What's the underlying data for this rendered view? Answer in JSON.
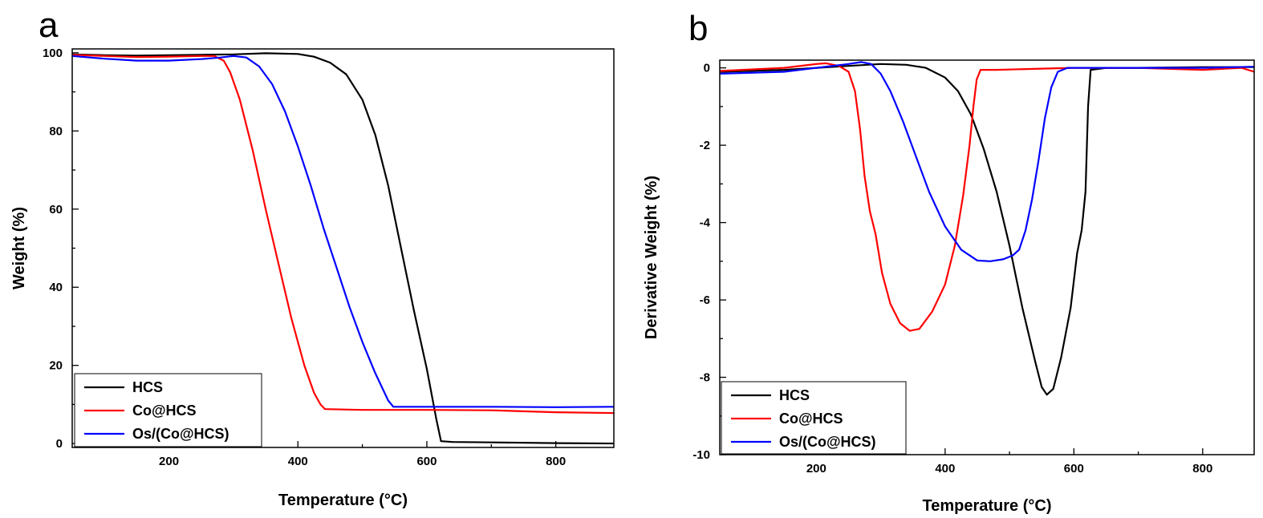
{
  "chart_data": [
    {
      "panel": "a",
      "type": "line",
      "title": "",
      "xlabel": "Temperature (°C)",
      "ylabel": "Weight (%)",
      "xlim": [
        50,
        890
      ],
      "ylim": [
        -1,
        101
      ],
      "xticks": [
        200,
        400,
        600,
        800
      ],
      "yticks": [
        0,
        20,
        40,
        60,
        80,
        100
      ],
      "grid": false,
      "legend_position": "bottom-left",
      "series": [
        {
          "name": "HCS",
          "color": "#000000",
          "points": [
            [
              50,
              99.6
            ],
            [
              100,
              99.4
            ],
            [
              150,
              99.3
            ],
            [
              200,
              99.4
            ],
            [
              250,
              99.5
            ],
            [
              300,
              99.6
            ],
            [
              350,
              99.9
            ],
            [
              400,
              99.7
            ],
            [
              425,
              99
            ],
            [
              450,
              97.5
            ],
            [
              475,
              94.5
            ],
            [
              500,
              88
            ],
            [
              520,
              79
            ],
            [
              540,
              66
            ],
            [
              560,
              50
            ],
            [
              580,
              34
            ],
            [
              600,
              19
            ],
            [
              615,
              6
            ],
            [
              622,
              0.6
            ],
            [
              640,
              0.4
            ],
            [
              700,
              0.3
            ],
            [
              800,
              0.1
            ],
            [
              890,
              0.0
            ]
          ]
        },
        {
          "name": "Co@HCS",
          "color": "#ff0000",
          "points": [
            [
              50,
              99.5
            ],
            [
              100,
              99.2
            ],
            [
              150,
              98.9
            ],
            [
              200,
              99
            ],
            [
              250,
              99.2
            ],
            [
              270,
              99.2
            ],
            [
              285,
              98
            ],
            [
              295,
              95
            ],
            [
              310,
              88
            ],
            [
              330,
              75
            ],
            [
              350,
              60
            ],
            [
              370,
              46
            ],
            [
              390,
              32
            ],
            [
              410,
              20
            ],
            [
              425,
              13
            ],
            [
              435,
              10
            ],
            [
              442,
              8.8
            ],
            [
              500,
              8.6
            ],
            [
              600,
              8.6
            ],
            [
              700,
              8.5
            ],
            [
              800,
              8.0
            ],
            [
              890,
              7.8
            ]
          ]
        },
        {
          "name": "Os/(Co@HCS)",
          "color": "#0000ff",
          "points": [
            [
              50,
              99.2
            ],
            [
              100,
              98.5
            ],
            [
              150,
              98
            ],
            [
              200,
              98
            ],
            [
              250,
              98.4
            ],
            [
              280,
              98.8
            ],
            [
              300,
              99.2
            ],
            [
              320,
              98.8
            ],
            [
              340,
              96.5
            ],
            [
              360,
              92
            ],
            [
              380,
              85
            ],
            [
              400,
              76
            ],
            [
              420,
              66
            ],
            [
              440,
              55
            ],
            [
              460,
              45
            ],
            [
              480,
              35
            ],
            [
              500,
              26
            ],
            [
              520,
              18
            ],
            [
              540,
              11
            ],
            [
              548,
              9.4
            ],
            [
              600,
              9.4
            ],
            [
              700,
              9.4
            ],
            [
              800,
              9.3
            ],
            [
              890,
              9.4
            ]
          ]
        }
      ]
    },
    {
      "panel": "b",
      "type": "line",
      "title": "",
      "xlabel": "Temperature (°C)",
      "ylabel": "Derivative Weight (%)",
      "xlim": [
        50,
        880
      ],
      "ylim": [
        -10,
        0.2
      ],
      "xticks": [
        200,
        400,
        600,
        800
      ],
      "yticks": [
        0,
        -2,
        -4,
        -6,
        -8,
        -10
      ],
      "grid": false,
      "legend_position": "bottom-left",
      "series": [
        {
          "name": "HCS",
          "color": "#000000",
          "points": [
            [
              50,
              -0.1
            ],
            [
              150,
              -0.05
            ],
            [
              250,
              0.05
            ],
            [
              300,
              0.1
            ],
            [
              340,
              0.08
            ],
            [
              370,
              0
            ],
            [
              400,
              -0.25
            ],
            [
              420,
              -0.6
            ],
            [
              440,
              -1.2
            ],
            [
              460,
              -2.1
            ],
            [
              480,
              -3.2
            ],
            [
              500,
              -4.6
            ],
            [
              520,
              -6.2
            ],
            [
              540,
              -7.6
            ],
            [
              550,
              -8.25
            ],
            [
              558,
              -8.45
            ],
            [
              568,
              -8.3
            ],
            [
              580,
              -7.5
            ],
            [
              595,
              -6.2
            ],
            [
              605,
              -4.8
            ],
            [
              612,
              -4.2
            ],
            [
              618,
              -3.2
            ],
            [
              622,
              -1.0
            ],
            [
              626,
              -0.05
            ],
            [
              650,
              0
            ],
            [
              700,
              0
            ],
            [
              800,
              0.02
            ],
            [
              880,
              0.02
            ]
          ]
        },
        {
          "name": "Co@HCS",
          "color": "#ff0000",
          "points": [
            [
              50,
              -0.08
            ],
            [
              150,
              0
            ],
            [
              200,
              0.1
            ],
            [
              215,
              0.12
            ],
            [
              235,
              0.05
            ],
            [
              250,
              -0.1
            ],
            [
              260,
              -0.6
            ],
            [
              268,
              -1.6
            ],
            [
              275,
              -2.8
            ],
            [
              283,
              -3.7
            ],
            [
              292,
              -4.3
            ],
            [
              302,
              -5.3
            ],
            [
              315,
              -6.1
            ],
            [
              330,
              -6.6
            ],
            [
              345,
              -6.8
            ],
            [
              360,
              -6.75
            ],
            [
              380,
              -6.3
            ],
            [
              400,
              -5.6
            ],
            [
              415,
              -4.6
            ],
            [
              428,
              -3.3
            ],
            [
              438,
              -2.0
            ],
            [
              444,
              -1.0
            ],
            [
              449,
              -0.3
            ],
            [
              455,
              -0.05
            ],
            [
              480,
              -0.05
            ],
            [
              550,
              -0.02
            ],
            [
              600,
              0
            ],
            [
              700,
              0
            ],
            [
              800,
              -0.05
            ],
            [
              860,
              0.0
            ],
            [
              880,
              -0.1
            ]
          ]
        },
        {
          "name": "Os/(Co@HCS)",
          "color": "#0000ff",
          "points": [
            [
              50,
              -0.15
            ],
            [
              150,
              -0.1
            ],
            [
              200,
              0
            ],
            [
              250,
              0.1
            ],
            [
              270,
              0.15
            ],
            [
              285,
              0.1
            ],
            [
              300,
              -0.15
            ],
            [
              315,
              -0.6
            ],
            [
              335,
              -1.4
            ],
            [
              355,
              -2.3
            ],
            [
              375,
              -3.2
            ],
            [
              400,
              -4.1
            ],
            [
              425,
              -4.7
            ],
            [
              450,
              -4.98
            ],
            [
              470,
              -5.0
            ],
            [
              490,
              -4.95
            ],
            [
              505,
              -4.85
            ],
            [
              515,
              -4.7
            ],
            [
              525,
              -4.2
            ],
            [
              535,
              -3.4
            ],
            [
              545,
              -2.4
            ],
            [
              555,
              -1.3
            ],
            [
              565,
              -0.5
            ],
            [
              575,
              -0.1
            ],
            [
              590,
              0
            ],
            [
              700,
              0
            ],
            [
              800,
              0.0
            ],
            [
              880,
              0.03
            ]
          ]
        }
      ]
    }
  ]
}
